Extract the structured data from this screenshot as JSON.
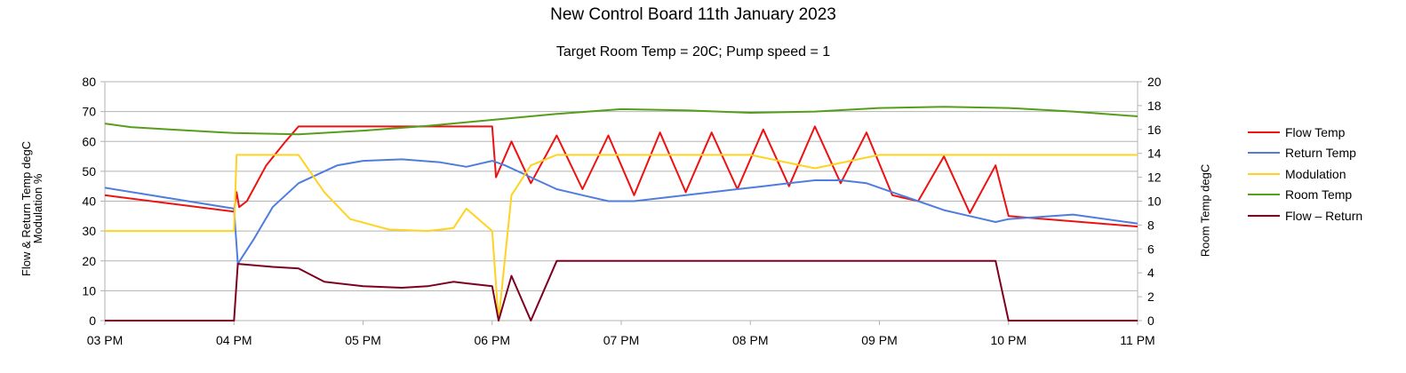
{
  "chart_data": {
    "type": "line",
    "title": "New Control Board 11th January 2023",
    "subtitle": "Target Room Temp = 20C; Pump speed = 1",
    "ylabel_left": "Flow & Return Temp degC",
    "ylabel_left_2": "Modulation %",
    "ylabel_right": "Room Temp degC",
    "ylim_left": [
      0,
      80
    ],
    "yticks_left": [
      0,
      10,
      20,
      30,
      40,
      50,
      60,
      70,
      80
    ],
    "ylim_right": [
      0,
      20
    ],
    "yticks_right": [
      0,
      2,
      4,
      6,
      8,
      10,
      12,
      14,
      16,
      18,
      20
    ],
    "xlim_hours": [
      15,
      23
    ],
    "x_ticks": [
      "03 PM",
      "04 PM",
      "05 PM",
      "06 PM",
      "07 PM",
      "08 PM",
      "09 PM",
      "10 PM",
      "11 PM"
    ],
    "grid": true,
    "legend_position": "right",
    "series": [
      {
        "name": "Flow Temp",
        "color": "#ee1111",
        "axis": "left",
        "x": [
          15.0,
          16.0,
          16.02,
          16.04,
          16.1,
          16.25,
          16.4,
          16.5,
          18.0,
          18.03,
          18.15,
          18.3,
          18.5,
          18.7,
          18.9,
          19.1,
          19.3,
          19.5,
          19.7,
          19.9,
          20.1,
          20.3,
          20.5,
          20.7,
          20.9,
          21.1,
          21.3,
          21.5,
          21.7,
          21.9,
          22.0,
          23.0
        ],
        "y": [
          42,
          36.5,
          43,
          38,
          40,
          52,
          60,
          65,
          65,
          48,
          60,
          46,
          62,
          44,
          62,
          42,
          63,
          43,
          63,
          44,
          64,
          45,
          65,
          46,
          63,
          42,
          40,
          55,
          36,
          52,
          35,
          31.5
        ]
      },
      {
        "name": "Return Temp",
        "color": "#4f7ddf",
        "axis": "left",
        "x": [
          15.0,
          16.0,
          16.03,
          16.15,
          16.3,
          16.5,
          16.8,
          17.0,
          17.3,
          17.6,
          17.8,
          18.0,
          18.1,
          18.3,
          18.5,
          18.7,
          18.9,
          19.1,
          19.3,
          19.5,
          19.7,
          19.9,
          20.1,
          20.3,
          20.5,
          20.7,
          20.9,
          21.1,
          21.3,
          21.5,
          21.7,
          21.9,
          22.0,
          22.5,
          23.0
        ],
        "y": [
          44.5,
          37.5,
          19,
          27,
          38,
          46,
          52,
          53.5,
          54,
          53,
          51.5,
          53.5,
          52,
          48,
          44,
          42,
          40,
          40,
          41,
          42,
          43,
          44,
          45,
          46,
          47,
          47,
          46,
          43,
          40,
          37,
          35,
          33,
          34,
          35.5,
          32.5
        ]
      },
      {
        "name": "Modulation",
        "color": "#ffd320",
        "axis": "left",
        "x": [
          15.0,
          16.0,
          16.02,
          16.5,
          16.7,
          16.9,
          17.2,
          17.5,
          17.7,
          17.8,
          18.0,
          18.05,
          18.15,
          18.3,
          18.5,
          18.7,
          19.0,
          19.5,
          20.0,
          20.5,
          21.0,
          21.5,
          22.0,
          23.0
        ],
        "y": [
          30,
          30,
          55.5,
          55.5,
          43,
          34,
          30.5,
          30,
          31,
          37.5,
          30,
          0,
          42,
          52,
          55.5,
          55.5,
          55.5,
          55.5,
          55.5,
          51,
          55.5,
          55.5,
          55.5,
          55.5
        ]
      },
      {
        "name": "Room Temp",
        "color": "#579d1c",
        "axis": "right",
        "x": [
          15.0,
          15.2,
          15.5,
          16.0,
          16.5,
          17.0,
          17.5,
          18.0,
          18.5,
          19.0,
          19.5,
          20.0,
          20.5,
          21.0,
          21.5,
          22.0,
          22.5,
          23.0
        ],
        "y": [
          16.5,
          16.2,
          16.0,
          15.7,
          15.6,
          15.9,
          16.3,
          16.8,
          17.3,
          17.7,
          17.6,
          17.4,
          17.5,
          17.8,
          17.9,
          17.8,
          17.5,
          17.1
        ]
      },
      {
        "name": "Flow – Return",
        "color": "#7e0021",
        "axis": "left",
        "x": [
          15.0,
          16.0,
          16.03,
          16.3,
          16.5,
          16.7,
          17.0,
          17.3,
          17.5,
          17.7,
          17.8,
          18.0,
          18.05,
          18.15,
          18.3,
          18.5,
          19.0,
          19.5,
          20.0,
          20.5,
          21.0,
          21.3,
          21.6,
          21.9,
          22.0,
          23.0
        ],
        "y": [
          0,
          0,
          19,
          18,
          17.5,
          13,
          11.5,
          11,
          11.5,
          13,
          12.5,
          11.5,
          0,
          15,
          0,
          20,
          20,
          20,
          20,
          20,
          20,
          20,
          20,
          20,
          0,
          0
        ]
      }
    ]
  }
}
